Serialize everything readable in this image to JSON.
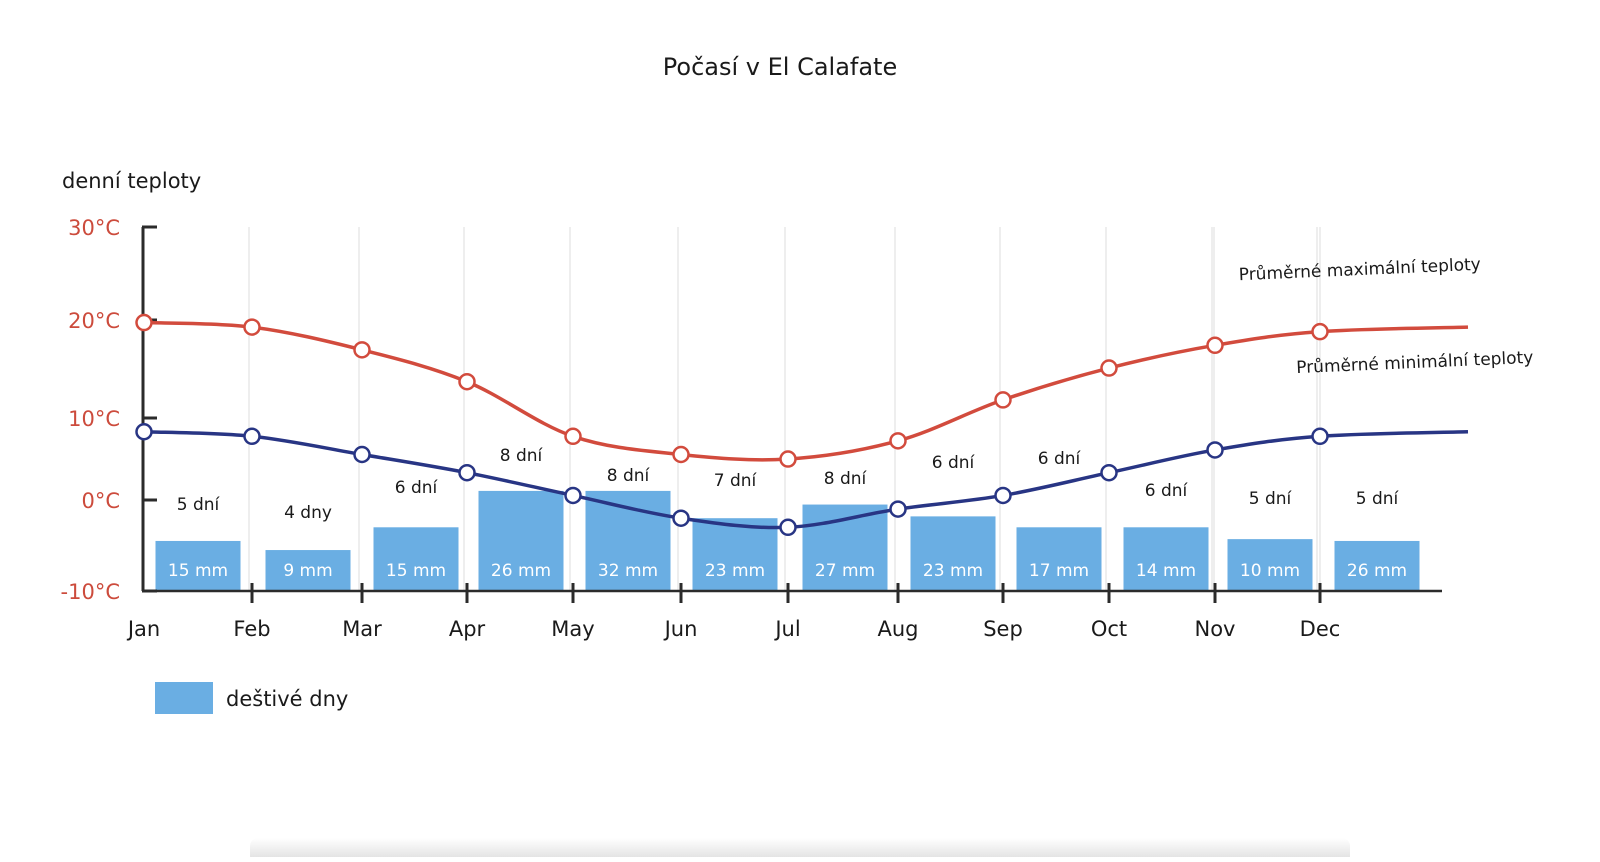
{
  "chart_data": {
    "type": "bar",
    "title": "Počasí v El Calafate",
    "ylabel": "denní teploty",
    "yticks": [
      "30°C",
      "20°C",
      "10°C",
      "0°C",
      "-10°C"
    ],
    "ylim": [
      -10,
      30
    ],
    "categories": [
      "Jan",
      "Feb",
      "Mar",
      "Apr",
      "May",
      "Jun",
      "Jul",
      "Aug",
      "Sep",
      "Oct",
      "Nov",
      "Dec"
    ],
    "rainy_days": [
      "5 dní",
      "4 dny",
      "6 dní",
      "8 dní",
      "8 dní",
      "7 dní",
      "8 dní",
      "6 dní",
      "6 dní",
      "6 dní",
      "5 dní",
      "5 dní"
    ],
    "precip_labels": [
      "15 mm",
      "9 mm",
      "15 mm",
      "26 mm",
      "32 mm",
      "23 mm",
      "27 mm",
      "23  mm",
      "17 mm",
      "14 mm",
      "10 mm",
      "26 mm"
    ],
    "bar_tops": [
      -4.5,
      -5.5,
      -3,
      1,
      1,
      -2,
      -0.5,
      -1.8,
      -3,
      -3,
      -4.3,
      -4.5
    ],
    "series": [
      {
        "name": "Průměrné maximální teploty",
        "color": "#d24b3d",
        "values": [
          19.5,
          19,
          16.5,
          13,
          7,
          5,
          4.5,
          6.5,
          11,
          14.5,
          17,
          18.5
        ],
        "end_value": 19
      },
      {
        "name": "Průměrné minimální teploty",
        "color": "#283584",
        "values": [
          7.5,
          7,
          5,
          3,
          0.5,
          -2,
          -3,
          -1,
          0.5,
          3,
          5.5,
          7
        ],
        "end_value": 7.5
      }
    ],
    "legend": {
      "label": "deštivé dny",
      "color": "#6aaee3",
      "placement": "bottom-left"
    },
    "grid": true
  }
}
